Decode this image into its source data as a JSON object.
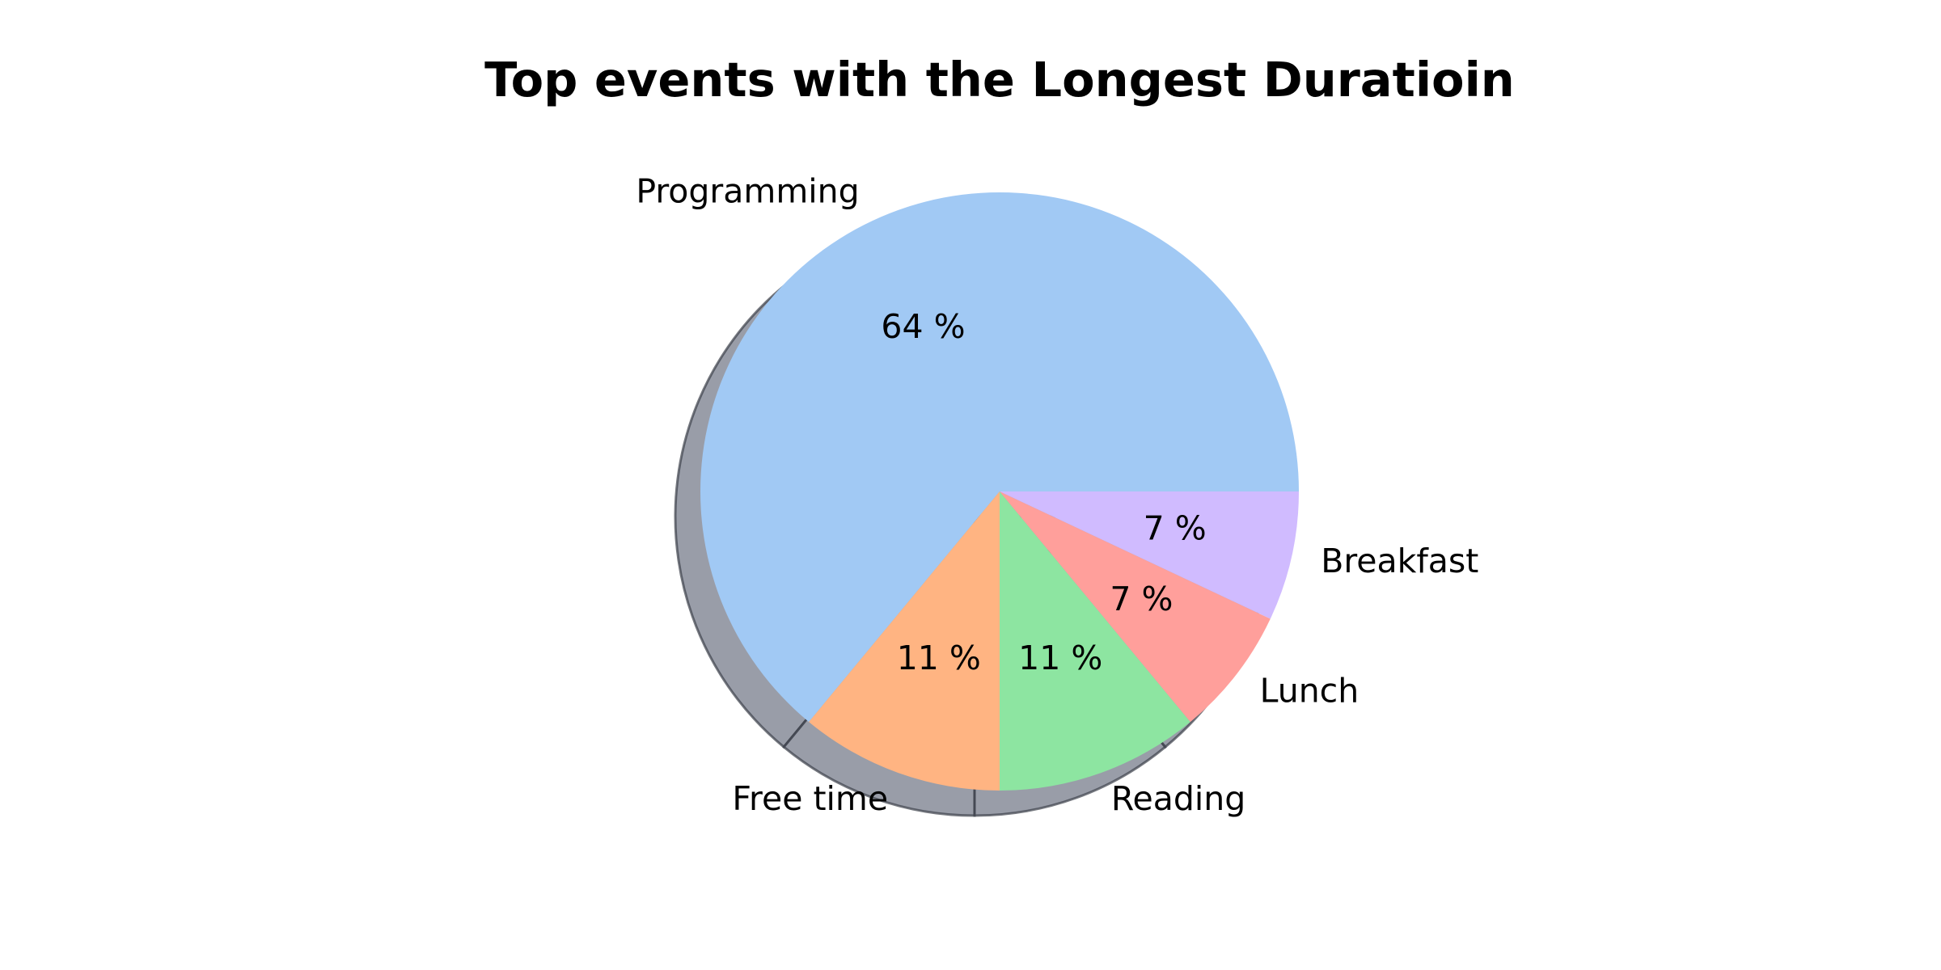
{
  "chart_data": {
    "type": "pie",
    "title": "Top events with the Longest Duratioin",
    "categories": [
      "Programming",
      "Free time",
      "Reading",
      "Lunch",
      "Breakfast"
    ],
    "values": [
      64,
      11,
      11,
      7,
      7
    ],
    "percent_labels": [
      "64 %",
      "11 %",
      "11 %",
      "7 %",
      "7 %"
    ],
    "colors": [
      "#a1c9f4",
      "#ffb482",
      "#8de5a1",
      "#ff9f9b",
      "#d0bbff"
    ],
    "shadow": true,
    "start_angle_deg": 0,
    "direction": "counterclockwise"
  }
}
